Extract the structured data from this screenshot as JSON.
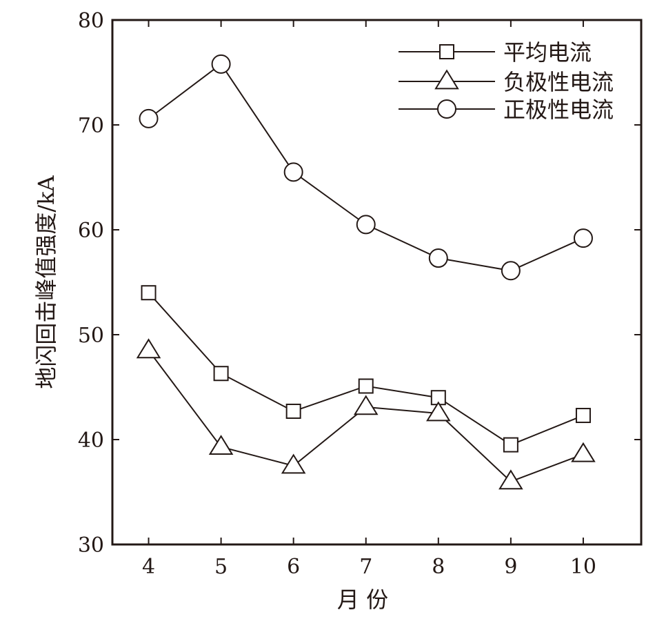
{
  "chart_data": {
    "type": "line",
    "xlabel": "月 份",
    "ylabel": "地闪回击峰值强度/kA",
    "x": [
      4,
      5,
      6,
      7,
      8,
      9,
      10
    ],
    "xticks": [
      "4",
      "5",
      "6",
      "7",
      "8",
      "9",
      "10"
    ],
    "yticks": [
      "30",
      "40",
      "50",
      "60",
      "70",
      "80"
    ],
    "ylim": [
      30,
      80
    ],
    "xlim": [
      3.5,
      10.8
    ],
    "grid": false,
    "legend_position": "top-right",
    "series": [
      {
        "name": "平均电流",
        "marker": "square",
        "values": [
          54.0,
          46.3,
          42.7,
          45.1,
          44.0,
          39.5,
          42.3
        ]
      },
      {
        "name": "负极性电流",
        "marker": "triangle",
        "values": [
          48.5,
          39.3,
          37.5,
          43.1,
          42.5,
          36.0,
          38.6
        ]
      },
      {
        "name": "正极性电流",
        "marker": "circle",
        "values": [
          70.6,
          75.8,
          65.5,
          60.5,
          57.3,
          56.1,
          59.2
        ]
      }
    ],
    "colors": {
      "line": "#231815",
      "background": "#ffffff"
    }
  }
}
